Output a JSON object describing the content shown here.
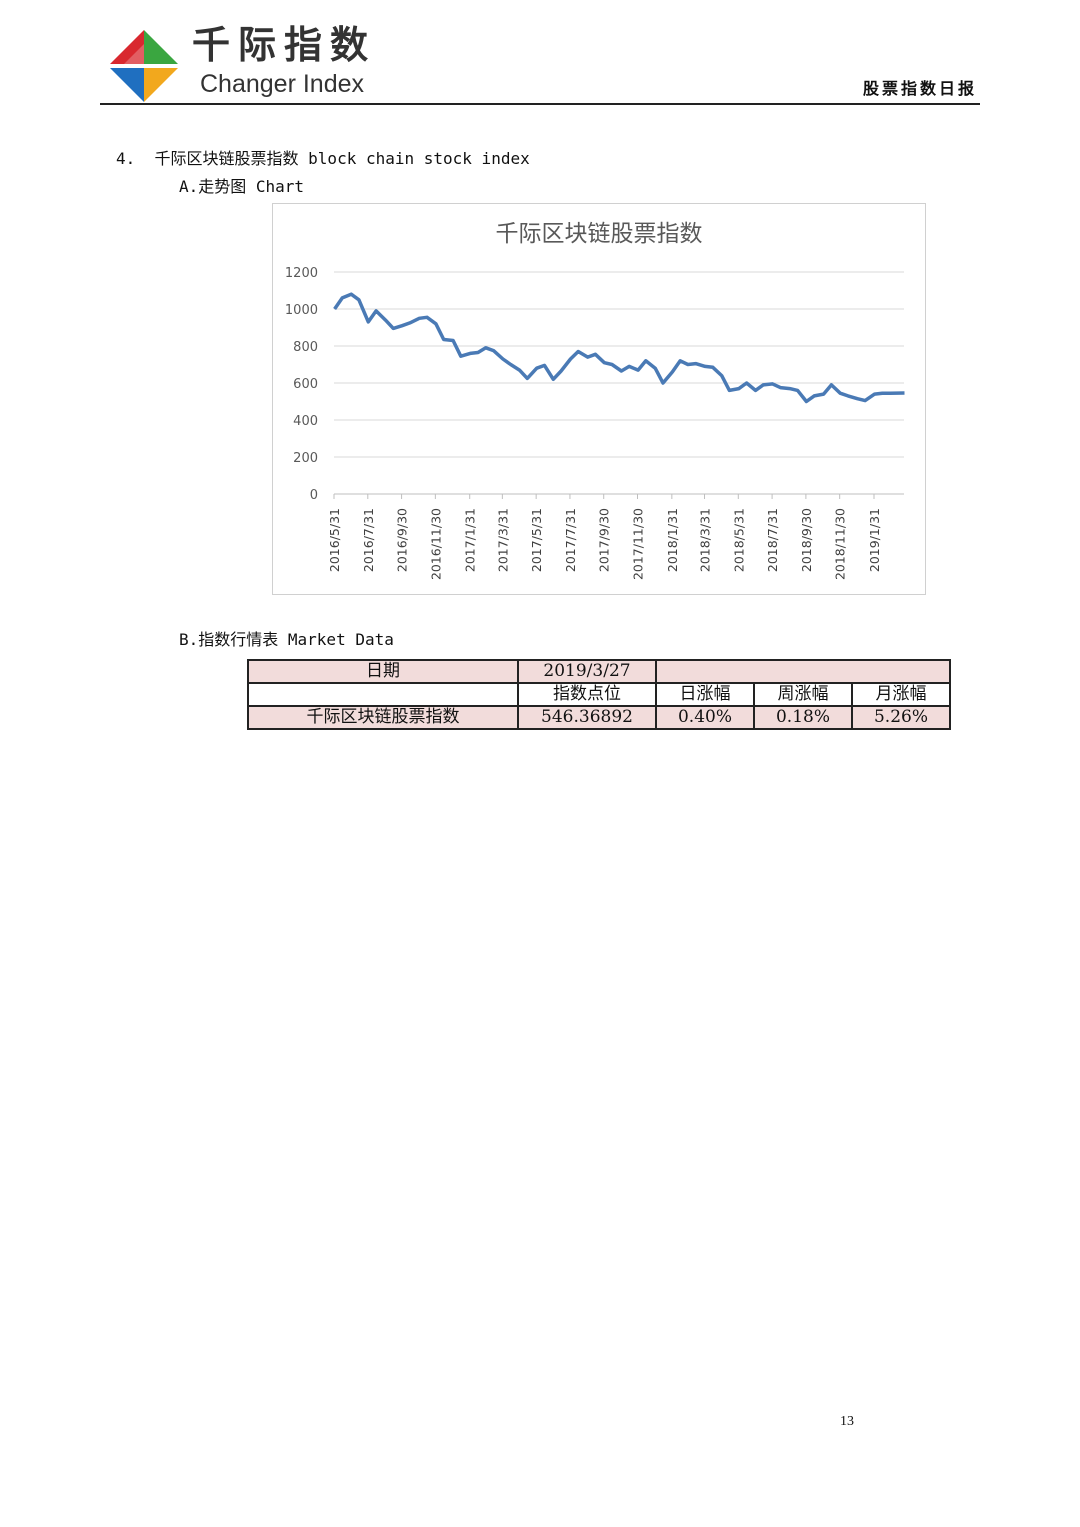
{
  "header": {
    "logo_cn": "千际指数",
    "logo_en": "Changer Index",
    "report_type": "股票指数日报"
  },
  "section": {
    "title": "4.  千际区块链股票指数 block chain stock index",
    "sub_a": "A.走势图 Chart",
    "sub_b": "B.指数行情表 Market Data"
  },
  "chart_data": {
    "type": "line",
    "title": "千际区块链股票指数",
    "xlabel": "",
    "ylabel": "",
    "ylim": [
      0,
      1200
    ],
    "yticks": [
      0,
      200,
      400,
      600,
      800,
      1000,
      1200
    ],
    "xticks": [
      "2016/5/31",
      "2016/7/31",
      "2016/9/30",
      "2016/11/30",
      "2017/1/31",
      "2017/3/31",
      "2017/5/31",
      "2017/7/31",
      "2017/9/30",
      "2017/11/30",
      "2018/1/31",
      "2018/3/31",
      "2018/5/31",
      "2018/7/31",
      "2018/9/30",
      "2018/11/30",
      "2019/1/31"
    ],
    "grid": true,
    "line_color": "#4a7ab5",
    "points": [
      [
        "2016/6/1",
        1000
      ],
      [
        "2016/6/15",
        1060
      ],
      [
        "2016/7/1",
        1080
      ],
      [
        "2016/7/15",
        1050
      ],
      [
        "2016/8/1",
        930
      ],
      [
        "2016/8/15",
        990
      ],
      [
        "2016/9/1",
        940
      ],
      [
        "2016/9/15",
        895
      ],
      [
        "2016/10/1",
        910
      ],
      [
        "2016/10/15",
        925
      ],
      [
        "2016/11/1",
        950
      ],
      [
        "2016/11/15",
        955
      ],
      [
        "2016/12/1",
        920
      ],
      [
        "2016/12/15",
        835
      ],
      [
        "2017/1/1",
        830
      ],
      [
        "2017/1/15",
        745
      ],
      [
        "2017/2/1",
        760
      ],
      [
        "2017/2/15",
        765
      ],
      [
        "2017/3/1",
        790
      ],
      [
        "2017/3/15",
        775
      ],
      [
        "2017/4/1",
        730
      ],
      [
        "2017/4/15",
        700
      ],
      [
        "2017/5/1",
        670
      ],
      [
        "2017/5/15",
        625
      ],
      [
        "2017/6/1",
        680
      ],
      [
        "2017/6/15",
        695
      ],
      [
        "2017/7/1",
        620
      ],
      [
        "2017/7/15",
        665
      ],
      [
        "2017/8/1",
        730
      ],
      [
        "2017/8/15",
        770
      ],
      [
        "2017/9/1",
        740
      ],
      [
        "2017/9/15",
        755
      ],
      [
        "2017/10/1",
        710
      ],
      [
        "2017/10/15",
        700
      ],
      [
        "2017/11/1",
        665
      ],
      [
        "2017/11/15",
        690
      ],
      [
        "2017/12/1",
        670
      ],
      [
        "2017/12/15",
        720
      ],
      [
        "2018/1/1",
        680
      ],
      [
        "2018/1/15",
        600
      ],
      [
        "2018/2/1",
        660
      ],
      [
        "2018/2/15",
        720
      ],
      [
        "2018/3/1",
        700
      ],
      [
        "2018/3/15",
        705
      ],
      [
        "2018/4/1",
        690
      ],
      [
        "2018/4/15",
        685
      ],
      [
        "2018/5/1",
        640
      ],
      [
        "2018/5/15",
        560
      ],
      [
        "2018/6/1",
        570
      ],
      [
        "2018/6/15",
        600
      ],
      [
        "2018/7/1",
        560
      ],
      [
        "2018/7/15",
        590
      ],
      [
        "2018/8/1",
        595
      ],
      [
        "2018/8/15",
        575
      ],
      [
        "2018/9/1",
        570
      ],
      [
        "2018/9/15",
        560
      ],
      [
        "2018/10/1",
        500
      ],
      [
        "2018/10/15",
        530
      ],
      [
        "2018/11/1",
        540
      ],
      [
        "2018/11/15",
        590
      ],
      [
        "2018/12/1",
        545
      ],
      [
        "2018/12/15",
        530
      ],
      [
        "2019/1/1",
        515
      ],
      [
        "2019/1/15",
        505
      ],
      [
        "2019/2/1",
        540
      ],
      [
        "2019/2/15",
        545
      ],
      [
        "2019/3/1",
        545
      ],
      [
        "2019/3/27",
        546
      ]
    ]
  },
  "table": {
    "date_label": "日期",
    "date_value": "2019/3/27",
    "headers": [
      "指数点位",
      "日涨幅",
      "周涨幅",
      "月涨幅"
    ],
    "row": {
      "name": "千际区块链股票指数",
      "values": [
        "546.36892",
        "0.40%",
        "0.18%",
        "5.26%"
      ]
    }
  },
  "footer": {
    "page_number": "13"
  }
}
